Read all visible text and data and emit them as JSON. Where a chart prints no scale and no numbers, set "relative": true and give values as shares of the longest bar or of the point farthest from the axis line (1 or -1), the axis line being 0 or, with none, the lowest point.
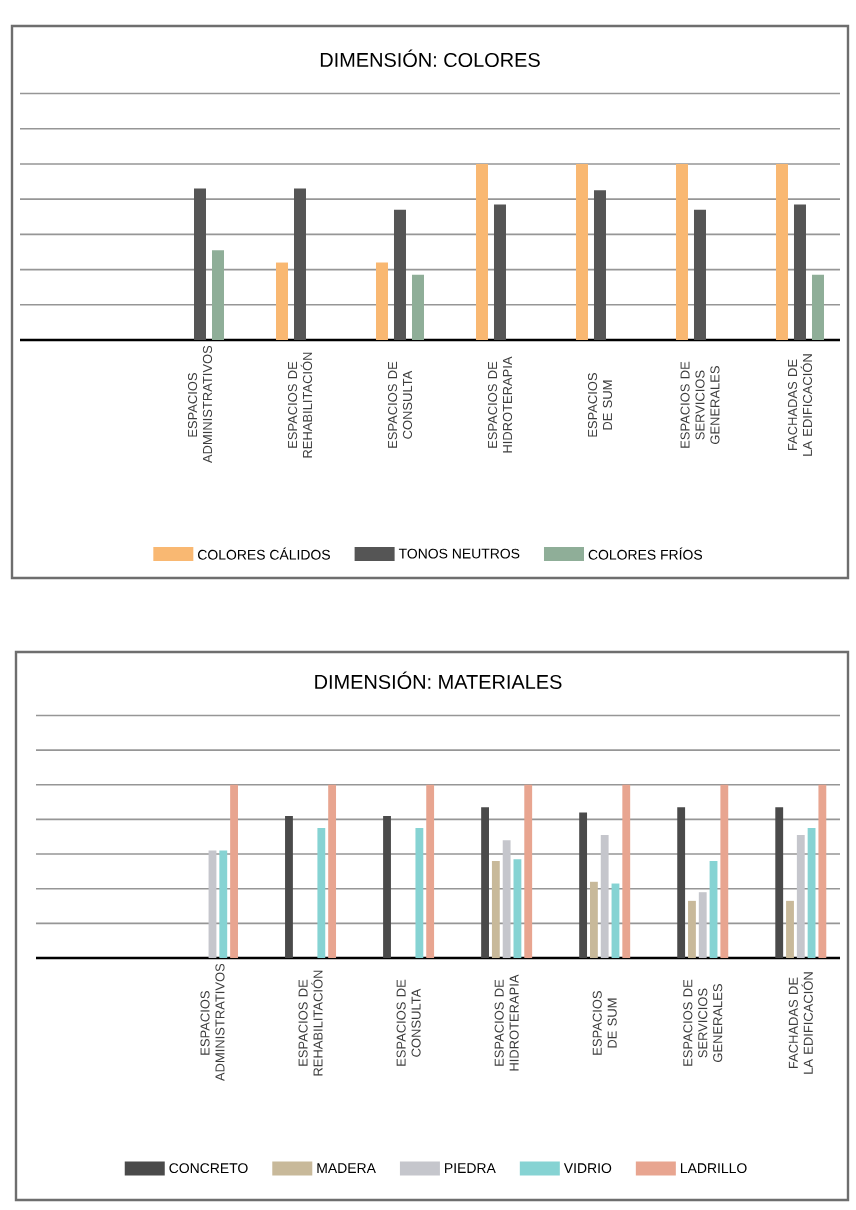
{
  "chart_data": [
    {
      "type": "bar",
      "title": "DIMENSIÓN: COLORES",
      "relative": true,
      "grid": "y",
      "legend": "bottom",
      "categories": [
        "ESPACIOS ADMINISTRATIVOS",
        "ESPACIOS DE REHABILITACIÓN",
        "ESPACIOS DE CONSULTA",
        "ESPACIOS DE HIDROTERAPIA",
        "ESPACIOS DE SUM",
        "ESPACIOS DE SERVICIOS GENERALES",
        "FACHADAS DE LA EDIFICACIÓN"
      ],
      "series": [
        {
          "name": "COLORES CÁLIDOS",
          "color": "#f9b872",
          "values": [
            null,
            0.44,
            0.44,
            1,
            1,
            1,
            1
          ]
        },
        {
          "name": "TONOS NEUTROS",
          "color": "#555555",
          "values": [
            0.86,
            0.86,
            0.74,
            0.77,
            0.85,
            0.74,
            0.77
          ]
        },
        {
          "name": "COLORES FRÍOS",
          "color": "#8fae98",
          "values": [
            0.51,
            null,
            0.37,
            null,
            null,
            null,
            0.37
          ]
        }
      ]
    },
    {
      "type": "bar",
      "title": "DIMENSIÓN: MATERIALES",
      "relative": true,
      "grid": "y",
      "legend": "bottom",
      "categories": [
        "ESPACIOS ADMINISTRATIVOS",
        "ESPACIOS DE REHABILITACIÓN",
        "ESPACIOS DE CONSULTA",
        "ESPACIOS DE HIDROTERAPIA",
        "ESPACIOS DE SUM",
        "ESPACIOS DE SERVICIOS GENERALES",
        "FACHADAS DE LA EDIFICACIÓN"
      ],
      "series": [
        {
          "name": "CONCRETO",
          "color": "#4a4a4a",
          "values": [
            null,
            0.82,
            0.82,
            0.87,
            0.84,
            0.87,
            0.87
          ]
        },
        {
          "name": "MADERA",
          "color": "#c8b99a",
          "values": [
            null,
            null,
            null,
            0.56,
            0.44,
            0.33,
            0.33
          ]
        },
        {
          "name": "PIEDRA",
          "color": "#c5c6cc",
          "values": [
            0.62,
            null,
            null,
            0.68,
            0.71,
            0.38,
            0.71
          ]
        },
        {
          "name": "VIDRIO",
          "color": "#86d3d3",
          "values": [
            0.62,
            0.75,
            0.75,
            0.57,
            0.43,
            0.56,
            0.75
          ]
        },
        {
          "name": "LADRILLO",
          "color": "#e8a590",
          "values": [
            1,
            1,
            1,
            1,
            1,
            1,
            1
          ]
        }
      ]
    }
  ]
}
